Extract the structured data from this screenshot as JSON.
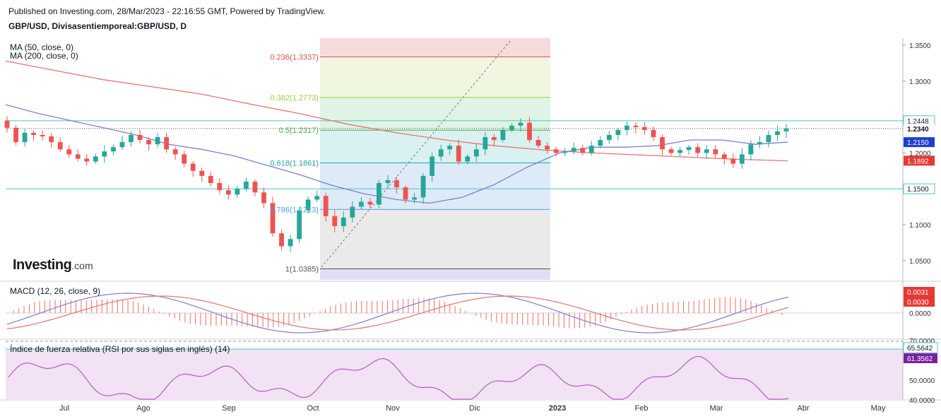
{
  "header": {
    "published": "Published on Investing.com, 28/Mar/2023 - 22:16:55 GMT, Powered by TradingView.",
    "symbol": "GBP/USD, Divisasentiemporeal:GBP/USD, D"
  },
  "logo": {
    "main": "Investing",
    "suffix": ".com"
  },
  "indicators": {
    "ma50": "MA (50, close, 0)",
    "ma200": "MA (200, close, 0)",
    "macd": "MACD (12, 26, close, 9)",
    "rsi": "Índice de fuerza relativa (RSI por sus siglas en inglés) (14)"
  },
  "colors": {
    "up": "#26a69a",
    "down": "#ef5350",
    "ma50": "#7d7dd9",
    "ma200": "#e57373",
    "price_tag_blue": "#1e3fc8",
    "price_tag_red": "#e53935",
    "macd_tag_red": "#e53935",
    "rsi_tag": "#7b1fa2"
  },
  "chart_data": [
    {
      "type": "candlestick",
      "x_labels": [
        "Jul",
        "Ago",
        "Sep",
        "Oct",
        "Nov",
        "Dic",
        "2023",
        "Feb",
        "Mar",
        "Abr",
        "May"
      ],
      "price_axis_ticks": [
        "1.3500",
        "1.3000",
        "1.2000",
        "1.1000",
        "1.0500"
      ],
      "ylim": [
        1.015,
        1.36
      ],
      "horizontal_levels": [
        {
          "label": "1.2448",
          "value": 1.2448
        },
        {
          "label": "1.1500",
          "value": 1.15
        }
      ],
      "price_tags": [
        {
          "label": "1.2448",
          "value": 1.2448,
          "style": "line"
        },
        {
          "label": "1.2340",
          "value": 1.234,
          "style": "plain"
        },
        {
          "label": "1.2150",
          "value": 1.215,
          "style": "blue"
        },
        {
          "label": "1.1892",
          "value": 1.1892,
          "style": "red"
        },
        {
          "label": "1.1500",
          "value": 1.15,
          "style": "line"
        }
      ],
      "fibonacci": [
        {
          "ratio": "0.236(1.3337)",
          "value": 1.3337,
          "color": "#e05050",
          "fill": "#f5d5d5"
        },
        {
          "ratio": "0.382(1.2773)",
          "value": 1.2773,
          "color": "#9ccc3c",
          "fill": "#eef5dc"
        },
        {
          "ratio": "0.5(1.2317)",
          "value": 1.2317,
          "color": "#4caf50",
          "fill": "#d9f2e0"
        },
        {
          "ratio": "0.618(1.1861)",
          "value": 1.1861,
          "color": "#26a69a",
          "fill": "#d4eeef"
        },
        {
          "ratio": "0.786(1.1213)",
          "value": 1.1213,
          "color": "#4aa3df",
          "fill": "#d6e8f6"
        },
        {
          "ratio": "1(1.0385)",
          "value": 1.0385,
          "color": "#555555",
          "fill": "#e6e6e6"
        }
      ],
      "fib_top_fill": "#f5d5d5",
      "fib_bottom_fill": "#d8d8f4",
      "fib_range_top": 1.36,
      "fib_range_bottom": 1.02,
      "candles_anchor_closes": [
        1.235,
        1.215,
        1.228,
        1.225,
        1.223,
        1.215,
        1.205,
        1.198,
        1.192,
        1.188,
        1.195,
        1.202,
        1.208,
        1.215,
        1.225,
        1.218,
        1.212,
        1.222,
        1.205,
        1.198,
        1.185,
        1.175,
        1.168,
        1.158,
        1.148,
        1.142,
        1.15,
        1.16,
        1.145,
        1.13,
        1.088,
        1.07,
        1.08,
        1.12,
        1.135,
        1.14,
        1.112,
        1.098,
        1.11,
        1.125,
        1.132,
        1.128,
        1.158,
        1.162,
        1.152,
        1.135,
        1.138,
        1.168,
        1.195,
        1.205,
        1.21,
        1.188,
        1.195,
        1.205,
        1.222,
        1.218,
        1.232,
        1.238,
        1.242,
        1.218,
        1.21,
        1.205,
        1.2,
        1.202,
        1.207,
        1.2,
        1.21,
        1.218,
        1.225,
        1.232,
        1.238,
        1.236,
        1.232,
        1.222,
        1.205,
        1.2,
        1.204,
        1.208,
        1.2,
        1.205,
        1.198,
        1.192,
        1.185,
        1.198,
        1.212,
        1.215,
        1.225,
        1.23,
        1.234
      ],
      "ma50_series": [
        1.267,
        1.255,
        1.245,
        1.235,
        1.225,
        1.212,
        1.205,
        1.196,
        1.183,
        1.17,
        1.155,
        1.143,
        1.135,
        1.13,
        1.138,
        1.156,
        1.18,
        1.2,
        1.208,
        1.208,
        1.21,
        1.218,
        1.218,
        1.212,
        1.215
      ],
      "ma200_series": [
        1.328,
        1.315,
        1.302,
        1.292,
        1.282,
        1.268,
        1.255,
        1.24,
        1.228,
        1.218,
        1.21,
        1.204,
        1.2,
        1.197,
        1.194,
        1.191,
        1.189
      ]
    },
    {
      "type": "bar",
      "name": "MACD (12, 26, close, 9)",
      "axis_ticks": [
        "0.0000"
      ],
      "tags": [
        {
          "label": "0.0031",
          "value": 0.0031
        },
        {
          "label": "0.0030",
          "value": 0.003
        }
      ]
    },
    {
      "type": "line",
      "name": "Índice de fuerza relativa (RSI por sus siglas en inglés) (14)",
      "axis_ticks": [
        "70.0000",
        "50.0000",
        "40.0000"
      ],
      "tags": [
        {
          "label": "65.5642",
          "value": 65.5642
        },
        {
          "label": "61.3562",
          "value": 61.3562
        }
      ]
    }
  ]
}
